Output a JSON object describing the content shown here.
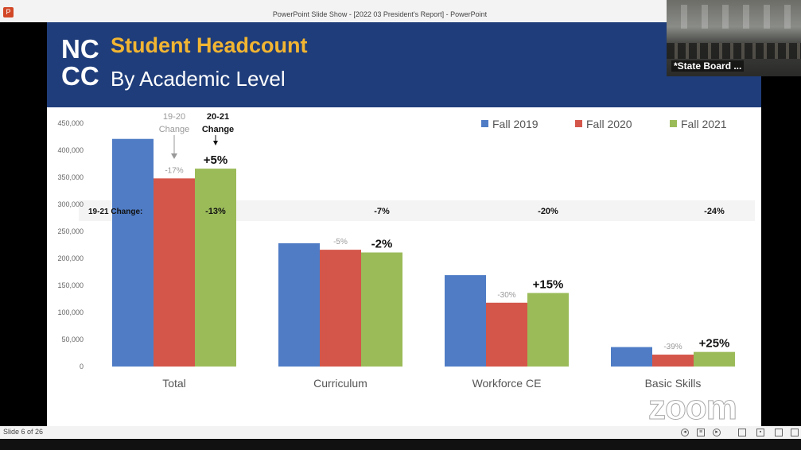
{
  "window": {
    "title": "PowerPoint Slide Show - [2022 03 President's Report] - PowerPoint"
  },
  "slide": {
    "logo_line1": "NC",
    "logo_line2": "CC",
    "title": "Student Headcount",
    "subtitle": "By Academic Level"
  },
  "zoom": {
    "participant_name": "*State Board ...",
    "watermark": "zoom"
  },
  "status": {
    "slide_number": "Slide 6 of 26"
  },
  "colors": {
    "header": "#1f3d7a",
    "title_accent": "#f2b532",
    "fall2019": "#4f7cc5",
    "fall2020": "#d4564a",
    "fall2021": "#9bbb59"
  },
  "icons": [
    "previous-icon",
    "menu-icon",
    "next-icon",
    "normal-view-icon",
    "slide-sorter-icon",
    "reading-view-icon",
    "slideshow-icon"
  ],
  "chart_data": {
    "type": "bar",
    "categories": [
      "Total",
      "Curriculum",
      "Workforce CE",
      "Basic Skills"
    ],
    "series": [
      {
        "name": "Fall 2019",
        "values": [
          421000,
          228000,
          169000,
          36000
        ]
      },
      {
        "name": "Fall 2020",
        "values": [
          348000,
          216000,
          118000,
          22000
        ]
      },
      {
        "name": "Fall 2021",
        "values": [
          366000,
          211000,
          136000,
          27000
        ]
      }
    ],
    "ylim": [
      0,
      450000
    ],
    "yticks": [
      "0",
      "50,000",
      "100,000",
      "150,000",
      "200,000",
      "250,000",
      "300,000",
      "350,000",
      "400,000",
      "450,000"
    ],
    "legend_position": "top-right",
    "change_19_20": [
      "-17%",
      "-5%",
      "-30%",
      "-39%"
    ],
    "change_20_21": [
      "+5%",
      "-2%",
      "+15%",
      "+25%"
    ],
    "change_19_21_label": "19-21 Change:",
    "change_19_21": [
      "-13%",
      "-7%",
      "-20%",
      "-24%"
    ],
    "annotation_19_20": "19-20 Change",
    "annotation_20_21": "20-21 Change"
  }
}
